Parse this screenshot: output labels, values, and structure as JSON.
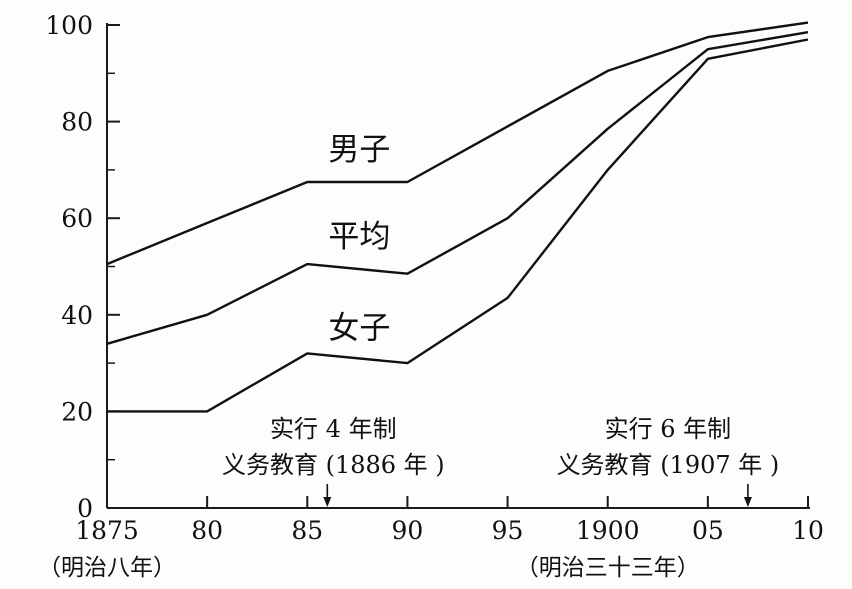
{
  "chart_data": {
    "type": "line",
    "title": "",
    "xlabel": "",
    "ylabel": "",
    "xlim": [
      1875,
      1910
    ],
    "ylim": [
      0,
      100
    ],
    "grid": false,
    "x_ticks": [
      1875,
      1880,
      1885,
      1890,
      1895,
      1900,
      1905,
      1910
    ],
    "x_tick_labels": [
      "1875",
      "80",
      "85",
      "90",
      "95",
      "1900",
      "05",
      "10"
    ],
    "y_ticks": [
      0,
      20,
      40,
      60,
      80,
      100
    ],
    "y_tick_labels": [
      "0",
      "20",
      "40",
      "60",
      "80",
      "100"
    ],
    "era_labels": [
      {
        "x": 1875,
        "text": "（明治八年）"
      },
      {
        "x": 1900,
        "text": "（明治三十三年）"
      }
    ],
    "series": [
      {
        "name": "男子",
        "x": [
          1875,
          1880,
          1885,
          1890,
          1895,
          1900,
          1905,
          1910
        ],
        "values": [
          50.5,
          59,
          67.5,
          67.5,
          79,
          90.5,
          97.5,
          100.5
        ]
      },
      {
        "name": "平均",
        "x": [
          1875,
          1880,
          1885,
          1890,
          1895,
          1900,
          1905,
          1910
        ],
        "values": [
          34,
          40,
          50.5,
          48.5,
          60,
          78.5,
          95,
          98.5
        ]
      },
      {
        "name": "女子",
        "x": [
          1875,
          1880,
          1885,
          1890,
          1895,
          1900,
          1905,
          1910
        ],
        "values": [
          20,
          20,
          32,
          30,
          43.5,
          70,
          93,
          97
        ]
      }
    ],
    "annotations": [
      {
        "x": 1886,
        "lines": [
          "实行 4 年制",
          "义务教育 (1886 年 )"
        ]
      },
      {
        "x": 1907,
        "lines": [
          "实行 6 年制",
          "义务教育 (1907 年 )"
        ]
      }
    ]
  }
}
